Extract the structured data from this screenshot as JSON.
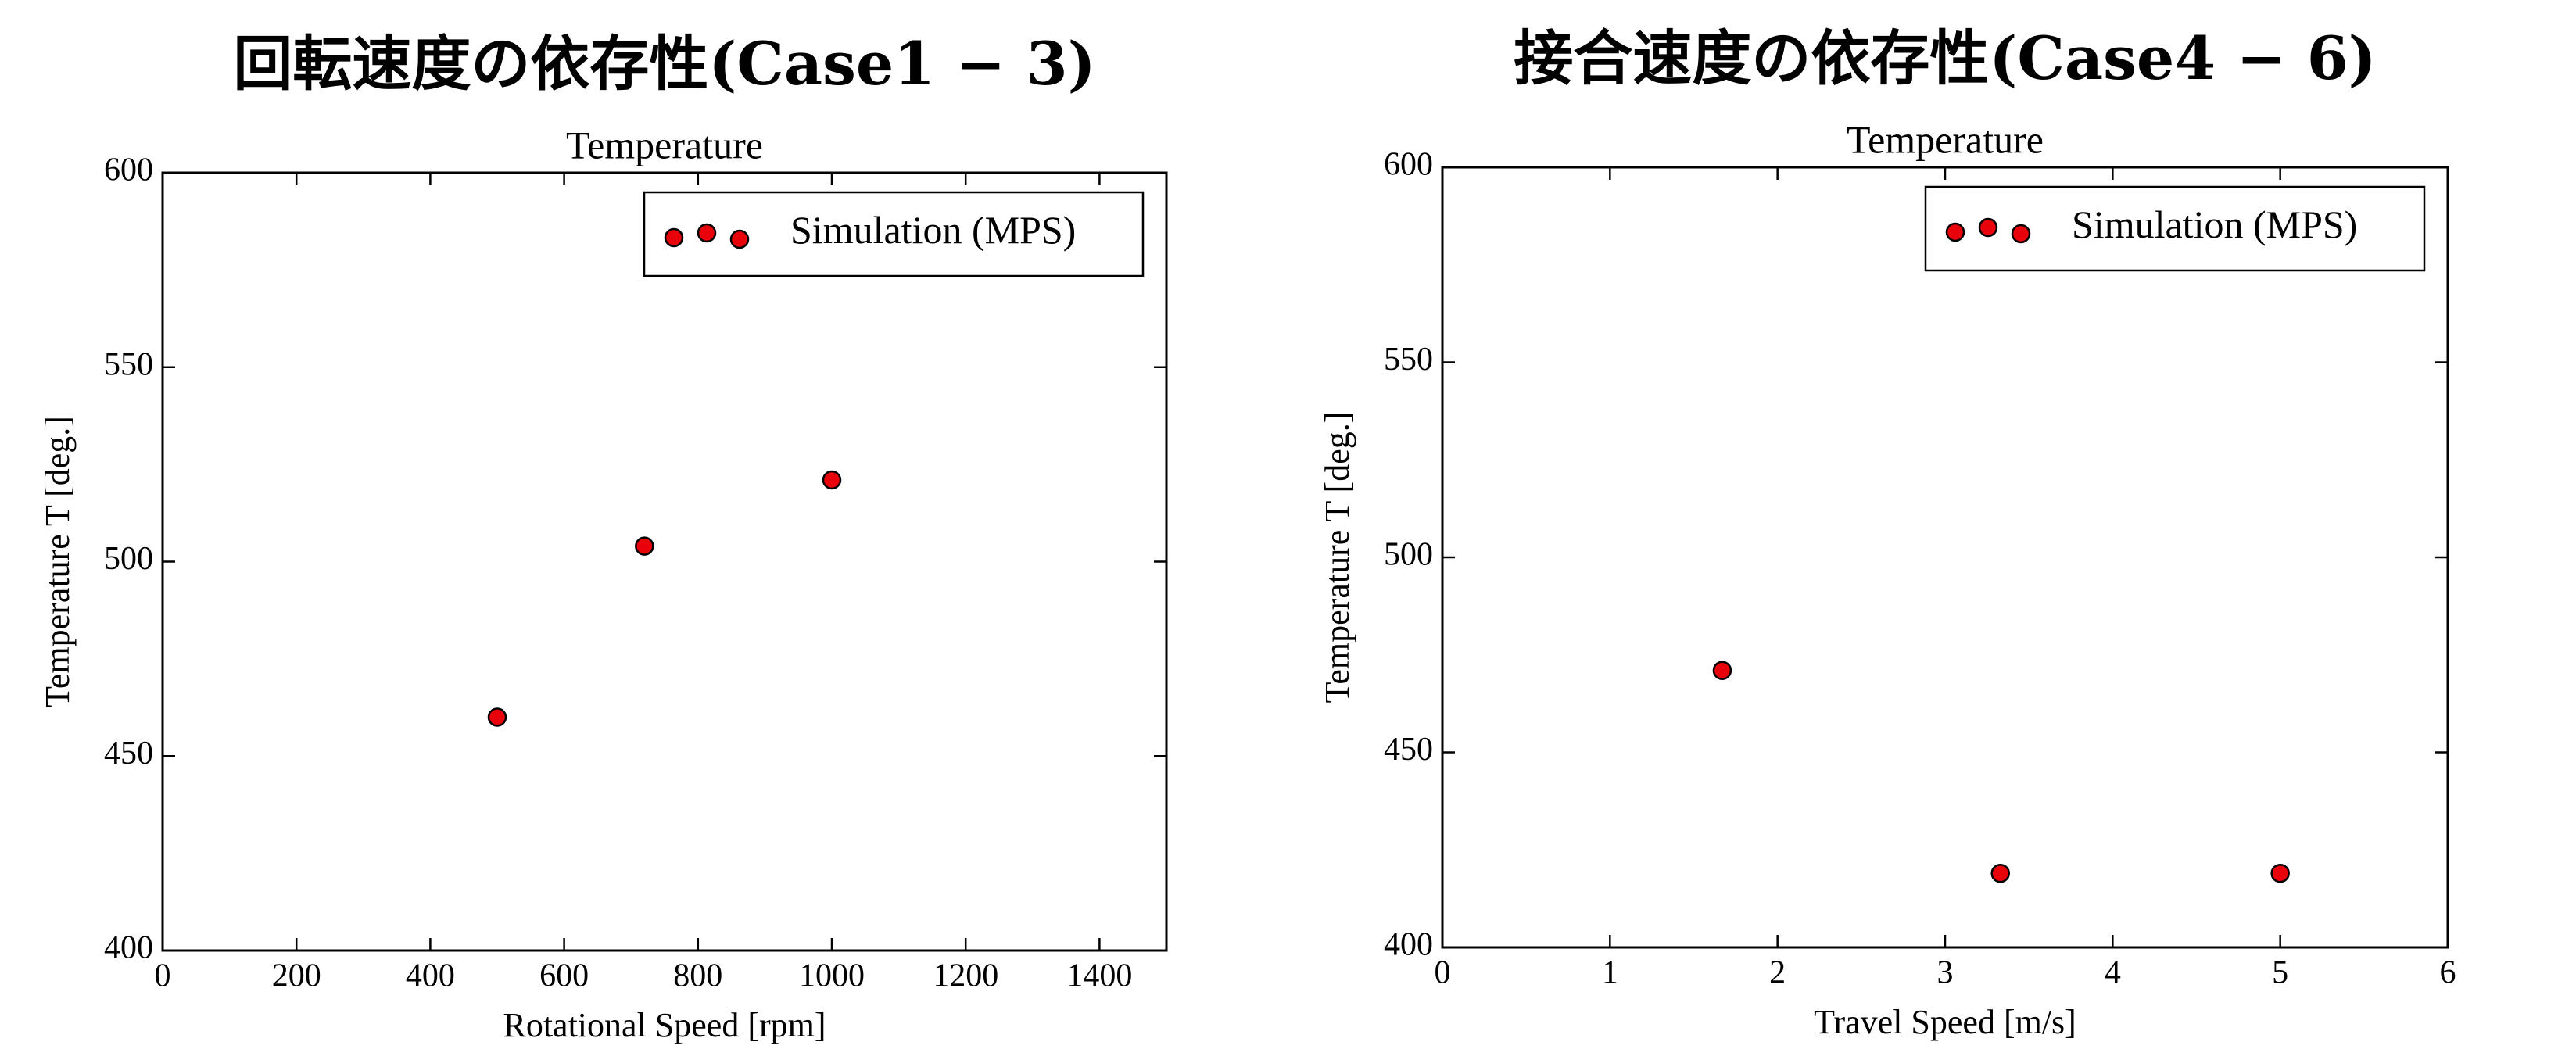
{
  "chart_data": [
    {
      "type": "scatter",
      "title": "回転速度の依存性(Case1 − 3)",
      "subtitle": "Temperature",
      "x_label": "Rotational Speed [rpm]",
      "y_label": "Temperature T [deg.]",
      "xlim": [
        0,
        1500
      ],
      "xticks": [
        0,
        200,
        400,
        600,
        800,
        1000,
        1200,
        1400
      ],
      "ylim": [
        400,
        600
      ],
      "yticks": [
        400,
        450,
        500,
        550,
        600
      ],
      "legend": "upper right",
      "series": [
        {
          "name": "Simulation (MPS)",
          "color": "#e8000b",
          "x": [
            500,
            720,
            1000
          ],
          "values": [
            460,
            504,
            521
          ]
        }
      ]
    },
    {
      "type": "scatter",
      "title": "接合速度の依存性(Case4 − 6)",
      "subtitle": "Temperature",
      "x_label": "Travel Speed [m/s]",
      "y_label": "Temperature T [deg.]",
      "xlim": [
        0,
        6
      ],
      "xticks": [
        0,
        1,
        2,
        3,
        4,
        5,
        6
      ],
      "ylim": [
        400,
        600
      ],
      "yticks": [
        400,
        450,
        500,
        550,
        600
      ],
      "legend": "upper right",
      "series": [
        {
          "name": "Simulation (MPS)",
          "color": "#e8000b",
          "x": [
            1.67,
            3.33,
            5
          ],
          "values": [
            471,
            419,
            419
          ]
        }
      ]
    }
  ]
}
